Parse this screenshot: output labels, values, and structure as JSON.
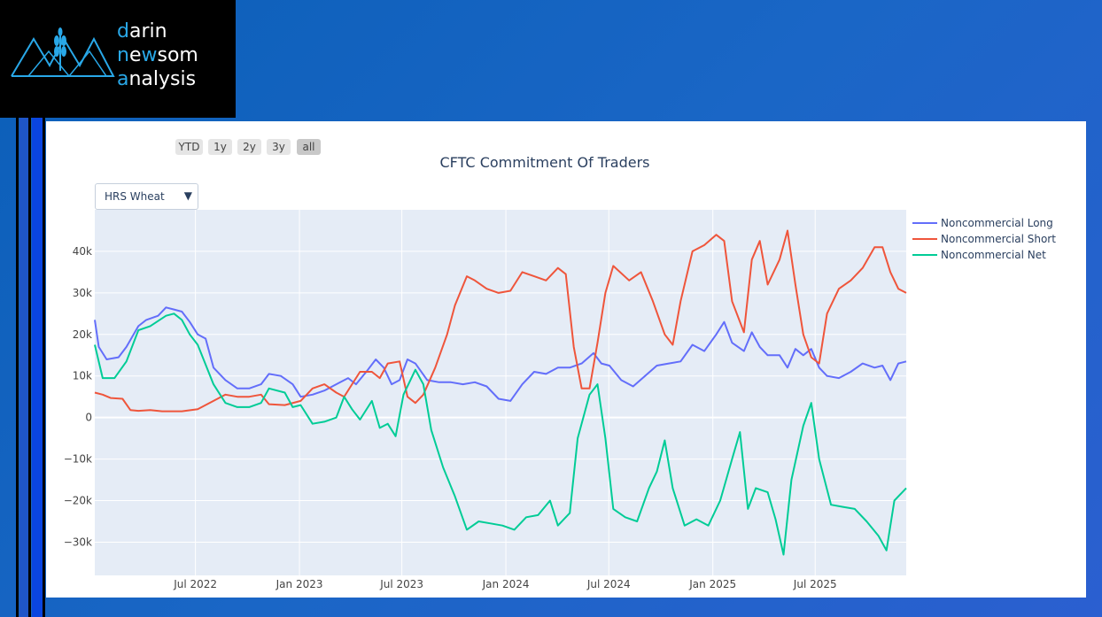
{
  "logo": {
    "line1": {
      "accent": "d",
      "rest": "arin"
    },
    "line2": {
      "p1": "n",
      "p2": "e",
      "p3": "w",
      "p4": "som"
    },
    "line3": {
      "accent": "a",
      "rest": "nalysis"
    }
  },
  "range_selector": {
    "buttons": [
      "YTD",
      "1y",
      "2y",
      "3y",
      "all"
    ],
    "active": "all"
  },
  "dropdown": {
    "selected": "HRS Wheat",
    "caret": "▼"
  },
  "colors": {
    "long": "#636efa",
    "short": "#ef553b",
    "net": "#00cc96",
    "plot_bg": "#e5ecf6"
  },
  "chart_data": {
    "type": "line",
    "title": "CFTC Commitment Of Traders",
    "xlabel": "",
    "ylabel": "",
    "x_range": [
      "2022-01-04",
      "2025-12-09"
    ],
    "ylim": [
      -38000,
      50000
    ],
    "y_ticks": [
      {
        "value": 40000,
        "label": "40k"
      },
      {
        "value": 30000,
        "label": "30k"
      },
      {
        "value": 20000,
        "label": "20k"
      },
      {
        "value": 10000,
        "label": "10k"
      },
      {
        "value": 0,
        "label": "0"
      },
      {
        "value": -10000,
        "label": "−10k"
      },
      {
        "value": -20000,
        "label": "−20k"
      },
      {
        "value": -30000,
        "label": "−30k"
      }
    ],
    "x_ticks": [
      {
        "date": "2022-07-01",
        "label": "Jul 2022"
      },
      {
        "date": "2023-01-01",
        "label": "Jan 2023"
      },
      {
        "date": "2023-07-01",
        "label": "Jul 2023"
      },
      {
        "date": "2024-01-01",
        "label": "Jan 2024"
      },
      {
        "date": "2024-07-01",
        "label": "Jul 2024"
      },
      {
        "date": "2025-01-01",
        "label": "Jan 2025"
      },
      {
        "date": "2025-07-01",
        "label": "Jul 2025"
      }
    ],
    "grid": true,
    "legend_position": "top-right",
    "series": [
      {
        "name": "Noncommercial Long",
        "color": "#636efa",
        "points": [
          [
            "2022-01-04",
            23500
          ],
          [
            "2022-01-11",
            17000
          ],
          [
            "2022-01-25",
            14000
          ],
          [
            "2022-02-15",
            14500
          ],
          [
            "2022-03-01",
            17000
          ],
          [
            "2022-03-22",
            22000
          ],
          [
            "2022-04-05",
            23500
          ],
          [
            "2022-04-26",
            24500
          ],
          [
            "2022-05-10",
            26500
          ],
          [
            "2022-05-24",
            26000
          ],
          [
            "2022-06-07",
            25500
          ],
          [
            "2022-06-21",
            23000
          ],
          [
            "2022-07-05",
            20000
          ],
          [
            "2022-07-19",
            19000
          ],
          [
            "2022-08-02",
            12000
          ],
          [
            "2022-08-23",
            9000
          ],
          [
            "2022-09-13",
            7000
          ],
          [
            "2022-10-04",
            7000
          ],
          [
            "2022-10-25",
            8000
          ],
          [
            "2022-11-08",
            10500
          ],
          [
            "2022-11-29",
            10000
          ],
          [
            "2022-12-20",
            8000
          ],
          [
            "2023-01-03",
            5000
          ],
          [
            "2023-01-24",
            5500
          ],
          [
            "2023-02-14",
            6500
          ],
          [
            "2023-03-07",
            8000
          ],
          [
            "2023-03-28",
            9500
          ],
          [
            "2023-04-11",
            8000
          ],
          [
            "2023-05-02",
            11500
          ],
          [
            "2023-05-16",
            14000
          ],
          [
            "2023-05-30",
            12000
          ],
          [
            "2023-06-13",
            8000
          ],
          [
            "2023-06-27",
            9000
          ],
          [
            "2023-07-11",
            14000
          ],
          [
            "2023-07-25",
            13000
          ],
          [
            "2023-08-15",
            9000
          ],
          [
            "2023-09-05",
            8500
          ],
          [
            "2023-09-26",
            8500
          ],
          [
            "2023-10-17",
            8000
          ],
          [
            "2023-11-07",
            8500
          ],
          [
            "2023-11-28",
            7500
          ],
          [
            "2023-12-19",
            4500
          ],
          [
            "2024-01-09",
            4000
          ],
          [
            "2024-01-30",
            8000
          ],
          [
            "2024-02-20",
            11000
          ],
          [
            "2024-03-12",
            10500
          ],
          [
            "2024-04-02",
            12000
          ],
          [
            "2024-04-23",
            12000
          ],
          [
            "2024-05-14",
            13000
          ],
          [
            "2024-06-04",
            15500
          ],
          [
            "2024-06-18",
            13000
          ],
          [
            "2024-07-02",
            12500
          ],
          [
            "2024-07-23",
            9000
          ],
          [
            "2024-08-13",
            7500
          ],
          [
            "2024-09-03",
            10000
          ],
          [
            "2024-09-24",
            12500
          ],
          [
            "2024-10-15",
            13000
          ],
          [
            "2024-11-05",
            13500
          ],
          [
            "2024-11-26",
            17500
          ],
          [
            "2024-12-17",
            16000
          ],
          [
            "2025-01-07",
            20000
          ],
          [
            "2025-01-21",
            23000
          ],
          [
            "2025-02-04",
            18000
          ],
          [
            "2025-02-25",
            16000
          ],
          [
            "2025-03-11",
            20500
          ],
          [
            "2025-03-25",
            17000
          ],
          [
            "2025-04-08",
            15000
          ],
          [
            "2025-04-29",
            15000
          ],
          [
            "2025-05-13",
            12000
          ],
          [
            "2025-05-27",
            16500
          ],
          [
            "2025-06-10",
            15000
          ],
          [
            "2025-06-24",
            16500
          ],
          [
            "2025-07-08",
            12000
          ],
          [
            "2025-07-22",
            10000
          ],
          [
            "2025-08-12",
            9500
          ],
          [
            "2025-09-02",
            11000
          ],
          [
            "2025-09-23",
            13000
          ],
          [
            "2025-10-14",
            12000
          ],
          [
            "2025-10-28",
            12500
          ],
          [
            "2025-11-11",
            9000
          ],
          [
            "2025-11-25",
            13000
          ],
          [
            "2025-12-09",
            13500
          ]
        ]
      },
      {
        "name": "Noncommercial Short",
        "color": "#ef553b",
        "points": [
          [
            "2022-01-04",
            6000
          ],
          [
            "2022-01-18",
            5500
          ],
          [
            "2022-02-01",
            4700
          ],
          [
            "2022-02-22",
            4500
          ],
          [
            "2022-03-08",
            1800
          ],
          [
            "2022-03-22",
            1600
          ],
          [
            "2022-04-12",
            1800
          ],
          [
            "2022-05-03",
            1500
          ],
          [
            "2022-06-07",
            1500
          ],
          [
            "2022-07-05",
            2000
          ],
          [
            "2022-08-02",
            4000
          ],
          [
            "2022-08-23",
            5500
          ],
          [
            "2022-09-13",
            5000
          ],
          [
            "2022-10-04",
            5000
          ],
          [
            "2022-10-25",
            5500
          ],
          [
            "2022-11-08",
            3200
          ],
          [
            "2022-12-06",
            3000
          ],
          [
            "2023-01-03",
            4000
          ],
          [
            "2023-01-24",
            7000
          ],
          [
            "2023-02-14",
            8000
          ],
          [
            "2023-03-07",
            6000
          ],
          [
            "2023-03-21",
            5000
          ],
          [
            "2023-04-04",
            8000
          ],
          [
            "2023-04-18",
            11000
          ],
          [
            "2023-05-09",
            11000
          ],
          [
            "2023-05-23",
            9500
          ],
          [
            "2023-06-06",
            13000
          ],
          [
            "2023-06-27",
            13500
          ],
          [
            "2023-07-11",
            5000
          ],
          [
            "2023-07-25",
            3500
          ],
          [
            "2023-08-08",
            5500
          ],
          [
            "2023-08-29",
            12000
          ],
          [
            "2023-09-19",
            20000
          ],
          [
            "2023-10-03",
            27000
          ],
          [
            "2023-10-24",
            34000
          ],
          [
            "2023-11-07",
            33000
          ],
          [
            "2023-11-28",
            31000
          ],
          [
            "2023-12-19",
            30000
          ],
          [
            "2024-01-09",
            30500
          ],
          [
            "2024-01-30",
            35000
          ],
          [
            "2024-02-20",
            34000
          ],
          [
            "2024-03-12",
            33000
          ],
          [
            "2024-04-02",
            36000
          ],
          [
            "2024-04-16",
            34500
          ],
          [
            "2024-04-30",
            17000
          ],
          [
            "2024-05-14",
            7000
          ],
          [
            "2024-05-28",
            7000
          ],
          [
            "2024-06-11",
            18000
          ],
          [
            "2024-06-25",
            30000
          ],
          [
            "2024-07-09",
            36500
          ],
          [
            "2024-08-06",
            33000
          ],
          [
            "2024-08-27",
            35000
          ],
          [
            "2024-09-17",
            28000
          ],
          [
            "2024-10-08",
            20000
          ],
          [
            "2024-10-22",
            17500
          ],
          [
            "2024-11-05",
            28000
          ],
          [
            "2024-11-26",
            40000
          ],
          [
            "2024-12-17",
            41500
          ],
          [
            "2025-01-07",
            44000
          ],
          [
            "2025-01-21",
            42500
          ],
          [
            "2025-02-04",
            28000
          ],
          [
            "2025-02-25",
            20500
          ],
          [
            "2025-03-11",
            38000
          ],
          [
            "2025-03-25",
            42500
          ],
          [
            "2025-04-08",
            32000
          ],
          [
            "2025-04-29",
            38000
          ],
          [
            "2025-05-13",
            45000
          ],
          [
            "2025-05-27",
            32000
          ],
          [
            "2025-06-10",
            20000
          ],
          [
            "2025-06-24",
            14500
          ],
          [
            "2025-07-08",
            13000
          ],
          [
            "2025-07-22",
            25000
          ],
          [
            "2025-08-12",
            31000
          ],
          [
            "2025-09-02",
            33000
          ],
          [
            "2025-09-23",
            36000
          ],
          [
            "2025-10-14",
            41000
          ],
          [
            "2025-10-28",
            41000
          ],
          [
            "2025-11-11",
            35000
          ],
          [
            "2025-11-25",
            31000
          ],
          [
            "2025-12-09",
            30000
          ]
        ]
      },
      {
        "name": "Noncommercial Net",
        "color": "#00cc96",
        "points": [
          [
            "2022-01-04",
            17500
          ],
          [
            "2022-01-18",
            9500
          ],
          [
            "2022-02-08",
            9500
          ],
          [
            "2022-03-01",
            13500
          ],
          [
            "2022-03-22",
            21000
          ],
          [
            "2022-04-12",
            22000
          ],
          [
            "2022-05-10",
            24500
          ],
          [
            "2022-05-24",
            25000
          ],
          [
            "2022-06-07",
            23500
          ],
          [
            "2022-06-21",
            20000
          ],
          [
            "2022-07-05",
            17500
          ],
          [
            "2022-08-02",
            8000
          ],
          [
            "2022-08-23",
            3500
          ],
          [
            "2022-09-13",
            2500
          ],
          [
            "2022-10-04",
            2500
          ],
          [
            "2022-10-25",
            3500
          ],
          [
            "2022-11-08",
            7000
          ],
          [
            "2022-12-06",
            6000
          ],
          [
            "2022-12-20",
            2500
          ],
          [
            "2023-01-03",
            3000
          ],
          [
            "2023-01-24",
            -1500
          ],
          [
            "2023-02-14",
            -1000
          ],
          [
            "2023-03-07",
            0
          ],
          [
            "2023-03-21",
            5000
          ],
          [
            "2023-04-04",
            2000
          ],
          [
            "2023-04-18",
            -500
          ],
          [
            "2023-05-09",
            4000
          ],
          [
            "2023-05-23",
            -2500
          ],
          [
            "2023-06-06",
            -1500
          ],
          [
            "2023-06-20",
            -4500
          ],
          [
            "2023-07-04",
            5500
          ],
          [
            "2023-07-25",
            11500
          ],
          [
            "2023-08-08",
            8000
          ],
          [
            "2023-08-22",
            -3000
          ],
          [
            "2023-09-12",
            -12000
          ],
          [
            "2023-10-03",
            -19000
          ],
          [
            "2023-10-24",
            -27000
          ],
          [
            "2023-11-14",
            -25000
          ],
          [
            "2023-12-05",
            -25500
          ],
          [
            "2023-12-26",
            -26000
          ],
          [
            "2024-01-16",
            -27000
          ],
          [
            "2024-02-06",
            -24000
          ],
          [
            "2024-02-27",
            -23500
          ],
          [
            "2024-03-19",
            -20000
          ],
          [
            "2024-04-02",
            -26000
          ],
          [
            "2024-04-23",
            -23000
          ],
          [
            "2024-05-07",
            -5000
          ],
          [
            "2024-05-28",
            5500
          ],
          [
            "2024-06-11",
            8000
          ],
          [
            "2024-06-25",
            -5000
          ],
          [
            "2024-07-09",
            -22000
          ],
          [
            "2024-07-30",
            -24000
          ],
          [
            "2024-08-20",
            -25000
          ],
          [
            "2024-09-10",
            -17000
          ],
          [
            "2024-09-24",
            -13000
          ],
          [
            "2024-10-08",
            -5500
          ],
          [
            "2024-10-22",
            -17000
          ],
          [
            "2024-11-12",
            -26000
          ],
          [
            "2024-12-03",
            -24500
          ],
          [
            "2024-12-24",
            -26000
          ],
          [
            "2025-01-14",
            -20000
          ],
          [
            "2025-02-04",
            -10000
          ],
          [
            "2025-02-18",
            -3500
          ],
          [
            "2025-03-04",
            -22000
          ],
          [
            "2025-03-18",
            -17000
          ],
          [
            "2025-04-08",
            -18000
          ],
          [
            "2025-04-22",
            -24500
          ],
          [
            "2025-05-06",
            -33000
          ],
          [
            "2025-05-20",
            -15000
          ],
          [
            "2025-06-10",
            -2000
          ],
          [
            "2025-06-24",
            3500
          ],
          [
            "2025-07-08",
            -10000
          ],
          [
            "2025-07-29",
            -21000
          ],
          [
            "2025-08-19",
            -21500
          ],
          [
            "2025-09-09",
            -22000
          ],
          [
            "2025-09-30",
            -25000
          ],
          [
            "2025-10-21",
            -28500
          ],
          [
            "2025-11-04",
            -32000
          ],
          [
            "2025-11-18",
            -20000
          ],
          [
            "2025-12-09",
            -17000
          ]
        ]
      }
    ]
  }
}
